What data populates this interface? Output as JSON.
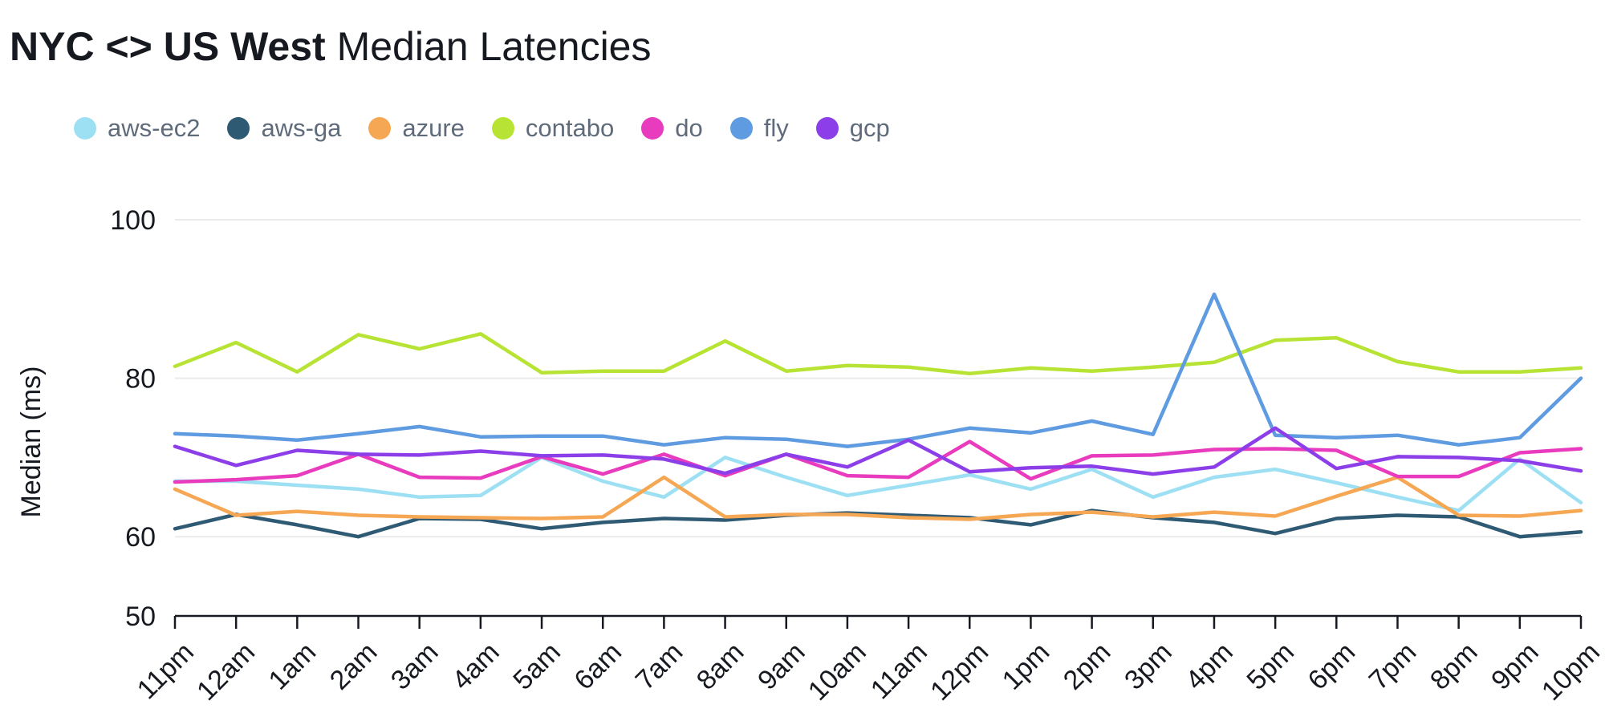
{
  "title": {
    "bold": "NYC <> US West",
    "normal": "Median Latencies"
  },
  "chart_data": {
    "type": "line",
    "title": "NYC <> US West Median Latencies",
    "xlabel": "",
    "ylabel": "Median (ms)",
    "ylim": [
      50,
      100
    ],
    "yticks": [
      50,
      60,
      80,
      100
    ],
    "grid": true,
    "legend_position": "top-left",
    "categories": [
      "11pm",
      "12am",
      "1am",
      "2am",
      "3am",
      "4am",
      "5am",
      "6am",
      "7am",
      "8am",
      "9am",
      "10am",
      "11am",
      "12pm",
      "1pm",
      "2pm",
      "3pm",
      "4pm",
      "5pm",
      "6pm",
      "7pm",
      "8pm",
      "9pm",
      "10pm"
    ],
    "series": [
      {
        "name": "aws-ec2",
        "color": "#9ee0f3",
        "values": [
          67.0,
          67.0,
          66.5,
          66.0,
          65.0,
          65.2,
          70.0,
          67.0,
          65.0,
          70.0,
          67.5,
          65.2,
          66.5,
          67.8,
          66.0,
          68.5,
          65.0,
          67.5,
          68.5,
          66.8,
          65.0,
          63.3,
          69.8,
          64.3
        ]
      },
      {
        "name": "aws-ga",
        "color": "#2f5a74",
        "values": [
          61.0,
          62.8,
          61.5,
          60.0,
          62.3,
          62.2,
          61.0,
          61.8,
          62.3,
          62.1,
          62.7,
          63.0,
          62.7,
          62.4,
          61.5,
          63.3,
          62.4,
          61.8,
          60.4,
          62.3,
          62.7,
          62.5,
          60.0,
          60.6
        ]
      },
      {
        "name": "azure",
        "color": "#f5a754",
        "values": [
          66.0,
          62.7,
          63.2,
          62.7,
          62.5,
          62.4,
          62.3,
          62.5,
          67.5,
          62.5,
          62.8,
          62.8,
          62.4,
          62.2,
          62.8,
          63.1,
          62.5,
          63.1,
          62.6,
          65.1,
          67.5,
          62.7,
          62.6,
          63.3
        ]
      },
      {
        "name": "contabo",
        "color": "#b7e334",
        "values": [
          81.5,
          84.5,
          80.8,
          85.5,
          83.7,
          85.6,
          80.7,
          80.9,
          80.9,
          84.7,
          80.9,
          81.6,
          81.4,
          80.6,
          81.3,
          80.9,
          81.4,
          82.0,
          84.8,
          85.1,
          82.1,
          80.8,
          80.8,
          81.3
        ]
      },
      {
        "name": "do",
        "color": "#e83bbd",
        "values": [
          66.9,
          67.2,
          67.7,
          70.4,
          67.5,
          67.4,
          70.1,
          67.9,
          70.4,
          67.7,
          70.4,
          67.7,
          67.5,
          72.0,
          67.3,
          70.2,
          70.3,
          71.0,
          71.1,
          70.9,
          67.6,
          67.6,
          70.6,
          71.1
        ]
      },
      {
        "name": "fly",
        "color": "#5e9be0",
        "values": [
          73.0,
          72.7,
          72.2,
          73.0,
          73.9,
          72.6,
          72.7,
          72.7,
          71.6,
          72.5,
          72.3,
          71.4,
          72.3,
          73.7,
          73.1,
          74.6,
          72.9,
          90.6,
          72.8,
          72.5,
          72.8,
          71.6,
          72.5,
          80.0
        ]
      },
      {
        "name": "gcp",
        "color": "#8c3fe8",
        "values": [
          71.4,
          69.0,
          70.9,
          70.4,
          70.3,
          70.8,
          70.2,
          70.3,
          69.8,
          68.0,
          70.4,
          68.8,
          72.2,
          68.2,
          68.7,
          68.9,
          67.9,
          68.8,
          73.7,
          68.6,
          70.1,
          70.0,
          69.6,
          68.3
        ]
      }
    ]
  }
}
